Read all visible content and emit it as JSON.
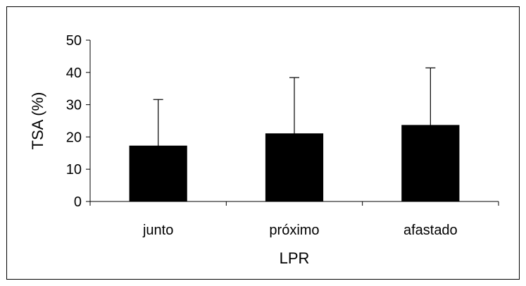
{
  "chart_data": {
    "type": "bar",
    "title": "",
    "xlabel": "LPR",
    "ylabel": "TSA (%)",
    "categories": [
      "junto",
      "próximo",
      "afastado"
    ],
    "values": [
      17.2,
      21,
      23.6
    ],
    "error_upper": [
      14.4,
      17.4,
      17.8
    ],
    "ylim": [
      0,
      50
    ],
    "yticks": [
      0,
      10,
      20,
      30,
      40,
      50
    ],
    "ytick_labels": [
      "0",
      "10",
      "20",
      "30",
      "40",
      "50"
    ],
    "bar_color": "#000000",
    "grid": false,
    "legend": "none"
  }
}
